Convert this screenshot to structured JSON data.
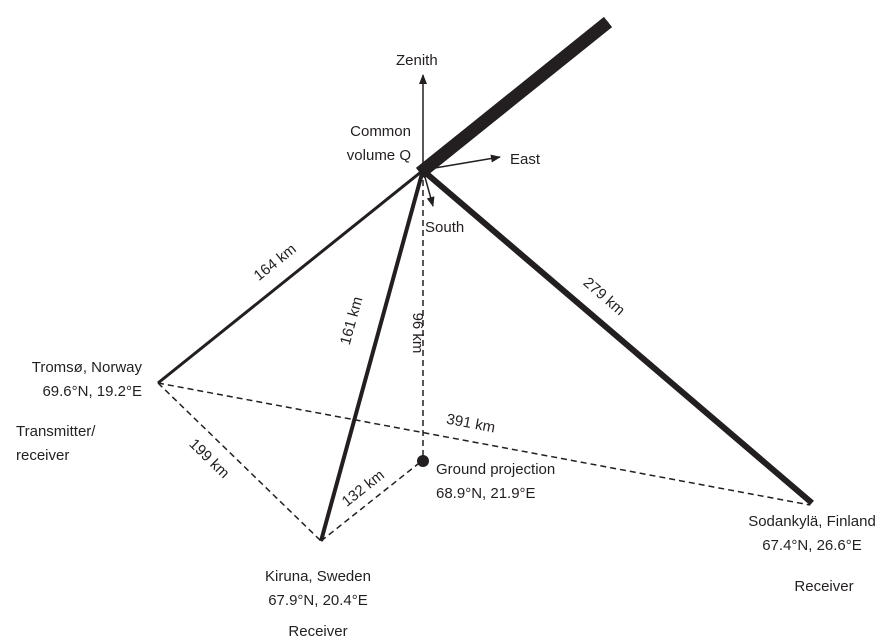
{
  "colors": {
    "ink": "#231f20",
    "background": "#ffffff"
  },
  "directions": {
    "zenith": "Zenith",
    "east": "East",
    "south": "South"
  },
  "common_volume": {
    "line1": "Common",
    "line2": "volume Q"
  },
  "distances": {
    "tromso_q": "164 km",
    "kiruna_q": "161 km",
    "sodankyla_q": "279 km",
    "height": "96 km",
    "tromso_sodankyla": "391 km",
    "tromso_kiruna": "199 km",
    "kiruna_ground": "132 km"
  },
  "tromso": {
    "name": "Tromsø, Norway",
    "coords": "69.6°N, 19.2°E",
    "role_line1": "Transmitter/",
    "role_line2": "receiver"
  },
  "kiruna": {
    "name": "Kiruna, Sweden",
    "coords": "67.9°N, 20.4°E",
    "role": "Receiver"
  },
  "sodankyla": {
    "name": "Sodankylä, Finland",
    "coords": "67.4°N, 26.6°E",
    "role": "Receiver"
  },
  "ground": {
    "name": "Ground projection",
    "coords": "68.9°N, 21.9°E"
  }
}
